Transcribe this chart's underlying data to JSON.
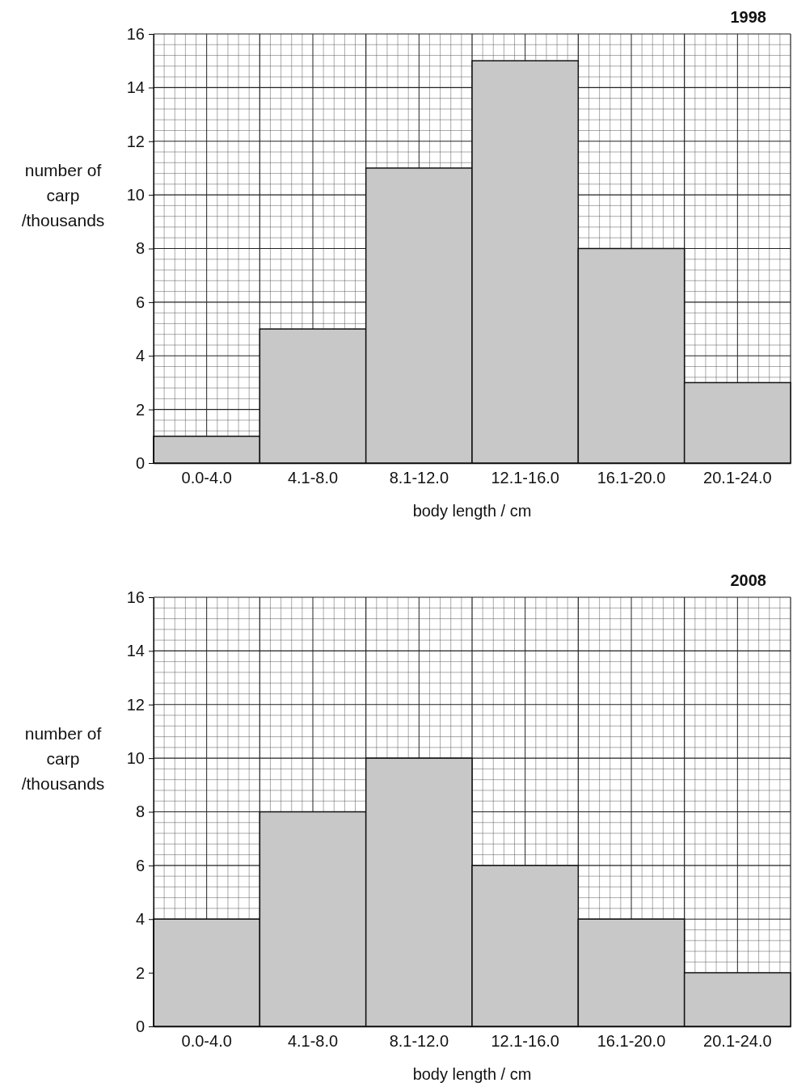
{
  "chart_data": [
    {
      "type": "bar",
      "title": "1998",
      "xlabel": "body length / cm",
      "ylabel": "number of carp /thousands",
      "categories": [
        "0.0-4.0",
        "4.1-8.0",
        "8.1-12.0",
        "12.1-16.0",
        "16.1-20.0",
        "20.1-24.0"
      ],
      "values": [
        1,
        5,
        11,
        15,
        8,
        3
      ],
      "color": "#c8c8c8",
      "ylim": [
        0,
        16
      ],
      "yticks": [
        0,
        2,
        4,
        6,
        8,
        10,
        12,
        14,
        16
      ],
      "grid": true
    },
    {
      "type": "bar",
      "title": "2008",
      "xlabel": "body length / cm",
      "ylabel": "number of carp /thousands",
      "categories": [
        "0.0-4.0",
        "4.1-8.0",
        "8.1-12.0",
        "12.1-16.0",
        "16.1-20.0",
        "20.1-24.0"
      ],
      "values": [
        4,
        8,
        10,
        6,
        4,
        2
      ],
      "color": "#c8c8c8",
      "ylim": [
        0,
        16
      ],
      "yticks": [
        0,
        2,
        4,
        6,
        8,
        10,
        12,
        14,
        16
      ],
      "grid": true
    }
  ]
}
